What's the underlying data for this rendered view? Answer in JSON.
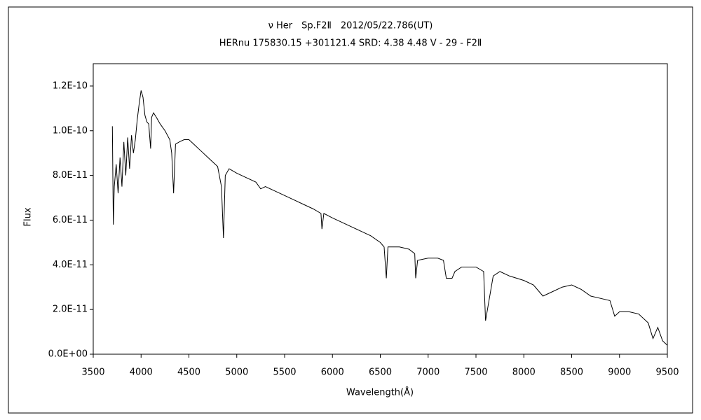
{
  "chart_data": {
    "type": "line",
    "title": "ν Her　Sp.F2Ⅱ　2012/05/22.786(UT)",
    "subtitle": "HERnu 175830.15 +301121.4 SRD: 4.38 4.48 V - 29 - F2Ⅱ",
    "xlabel": "Wavelength(Å)",
    "ylabel": "Flux",
    "color": "#000000",
    "grid": false,
    "x": [
      3700,
      3710,
      3720,
      3740,
      3760,
      3780,
      3800,
      3820,
      3840,
      3860,
      3880,
      3900,
      3920,
      3940,
      3960,
      3980,
      4000,
      4020,
      4040,
      4060,
      4080,
      4100,
      4110,
      4130,
      4160,
      4200,
      4250,
      4300,
      4320,
      4340,
      4360,
      4400,
      4450,
      4500,
      4550,
      4600,
      4650,
      4700,
      4750,
      4800,
      4840,
      4861,
      4880,
      4920,
      5000,
      5100,
      5200,
      5250,
      5300,
      5400,
      5500,
      5600,
      5700,
      5800,
      5880,
      5890,
      5910,
      6000,
      6100,
      6200,
      6300,
      6400,
      6500,
      6540,
      6563,
      6580,
      6700,
      6800,
      6860,
      6870,
      6890,
      7000,
      7100,
      7160,
      7190,
      7250,
      7280,
      7350,
      7500,
      7580,
      7600,
      7640,
      7680,
      7750,
      7850,
      8000,
      8100,
      8200,
      8300,
      8400,
      8500,
      8600,
      8700,
      8800,
      8900,
      8950,
      9000,
      9100,
      9200,
      9300,
      9350,
      9400,
      9450,
      9500
    ],
    "values": [
      1.02e-10,
      5.8e-11,
      7.5e-11,
      8.5e-11,
      7.2e-11,
      8.8e-11,
      7.5e-11,
      9.5e-11,
      8e-11,
      9.7e-11,
      8.3e-11,
      9.8e-11,
      9e-11,
      9.6e-11,
      1.05e-10,
      1.12e-10,
      1.18e-10,
      1.15e-10,
      1.07e-10,
      1.04e-10,
      1.03e-10,
      9.2e-11,
      1.06e-10,
      1.08e-10,
      1.06e-10,
      1.03e-10,
      1e-10,
      9.6e-11,
      9e-11,
      7.2e-11,
      9.4e-11,
      9.5e-11,
      9.6e-11,
      9.6e-11,
      9.4e-11,
      9.2e-11,
      9e-11,
      8.8e-11,
      8.6e-11,
      8.4e-11,
      7.5e-11,
      5.2e-11,
      8e-11,
      8.3e-11,
      8.1e-11,
      7.9e-11,
      7.7e-11,
      7.4e-11,
      7.5e-11,
      7.3e-11,
      7.1e-11,
      6.9e-11,
      6.7e-11,
      6.5e-11,
      6.3e-11,
      5.6e-11,
      6.3e-11,
      6.1e-11,
      5.9e-11,
      5.7e-11,
      5.5e-11,
      5.3e-11,
      5e-11,
      4.8e-11,
      3.4e-11,
      4.8e-11,
      4.8e-11,
      4.7e-11,
      4.5e-11,
      3.4e-11,
      4.2e-11,
      4.3e-11,
      4.3e-11,
      4.2e-11,
      3.4e-11,
      3.4e-11,
      3.7e-11,
      3.9e-11,
      3.9e-11,
      3.7e-11,
      1.5e-11,
      2.5e-11,
      3.5e-11,
      3.7e-11,
      3.5e-11,
      3.3e-11,
      3.1e-11,
      2.6e-11,
      2.8e-11,
      3e-11,
      3.1e-11,
      2.9e-11,
      2.6e-11,
      2.5e-11,
      2.4e-11,
      1.7e-11,
      1.9e-11,
      1.9e-11,
      1.8e-11,
      1.4e-11,
      7e-12,
      1.2e-11,
      6e-12,
      4e-12
    ],
    "xlim": [
      3500,
      9500
    ],
    "xticks": [
      3500,
      4000,
      4500,
      5000,
      5500,
      6000,
      6500,
      7000,
      7500,
      8000,
      8500,
      9000,
      9500
    ],
    "ylim": [
      0,
      1.3e-10
    ],
    "yticks": [
      {
        "value": 0,
        "label": "0.0E+00"
      },
      {
        "value": 2e-11,
        "label": "2.0E-11"
      },
      {
        "value": 4e-11,
        "label": "4.0E-11"
      },
      {
        "value": 6e-11,
        "label": "6.0E-11"
      },
      {
        "value": 8e-11,
        "label": "8.0E-11"
      },
      {
        "value": 1e-10,
        "label": "1.0E-10"
      },
      {
        "value": 1.2e-10,
        "label": "1.2E-10"
      }
    ]
  }
}
